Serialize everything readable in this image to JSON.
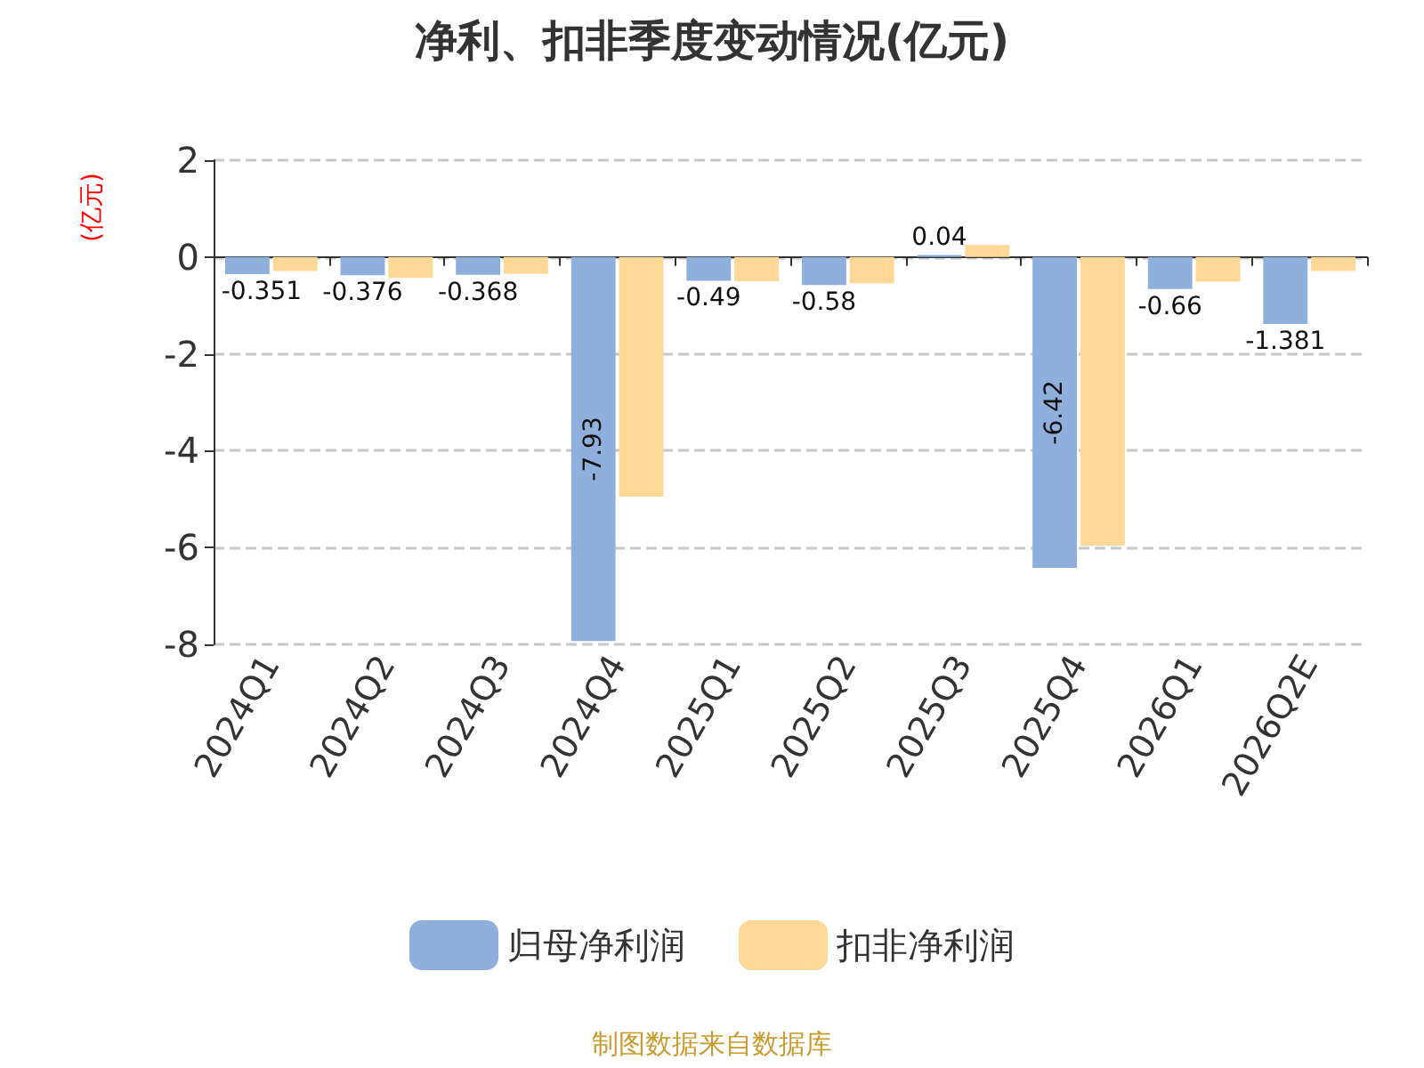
{
  "chart_data": {
    "type": "bar",
    "title": "净利、扣非季度变动情况(亿元)",
    "ylabel": "(亿元)",
    "categories": [
      "2024Q1",
      "2024Q2",
      "2024Q3",
      "2024Q4",
      "2025Q1",
      "2025Q2",
      "2025Q3",
      "2025Q4",
      "2026Q1",
      "2026Q2E"
    ],
    "series": [
      {
        "name": "归母净利润",
        "color": "#8fafdc",
        "values": [
          -0.351,
          -0.376,
          -0.368,
          -7.93,
          -0.49,
          -0.58,
          0.04,
          -6.42,
          -0.66,
          -1.381
        ],
        "value_labels": [
          "-0.351",
          "-0.376",
          "-0.368",
          "-7.93",
          "-0.49",
          "-0.58",
          "0.04",
          "-6.42",
          "-0.66",
          "-1.381"
        ]
      },
      {
        "name": "扣非净利润",
        "color": "#fed897",
        "values": [
          -0.29,
          -0.43,
          -0.35,
          -4.95,
          -0.5,
          -0.54,
          0.25,
          -5.96,
          -0.51,
          -0.29
        ]
      }
    ],
    "ylim": [
      -8,
      2
    ],
    "yticks": [
      2,
      0,
      -2,
      -4,
      -6,
      -8
    ],
    "grid": "y",
    "legend": "bottom",
    "annotations": [
      "制图数据来自数据库"
    ]
  }
}
